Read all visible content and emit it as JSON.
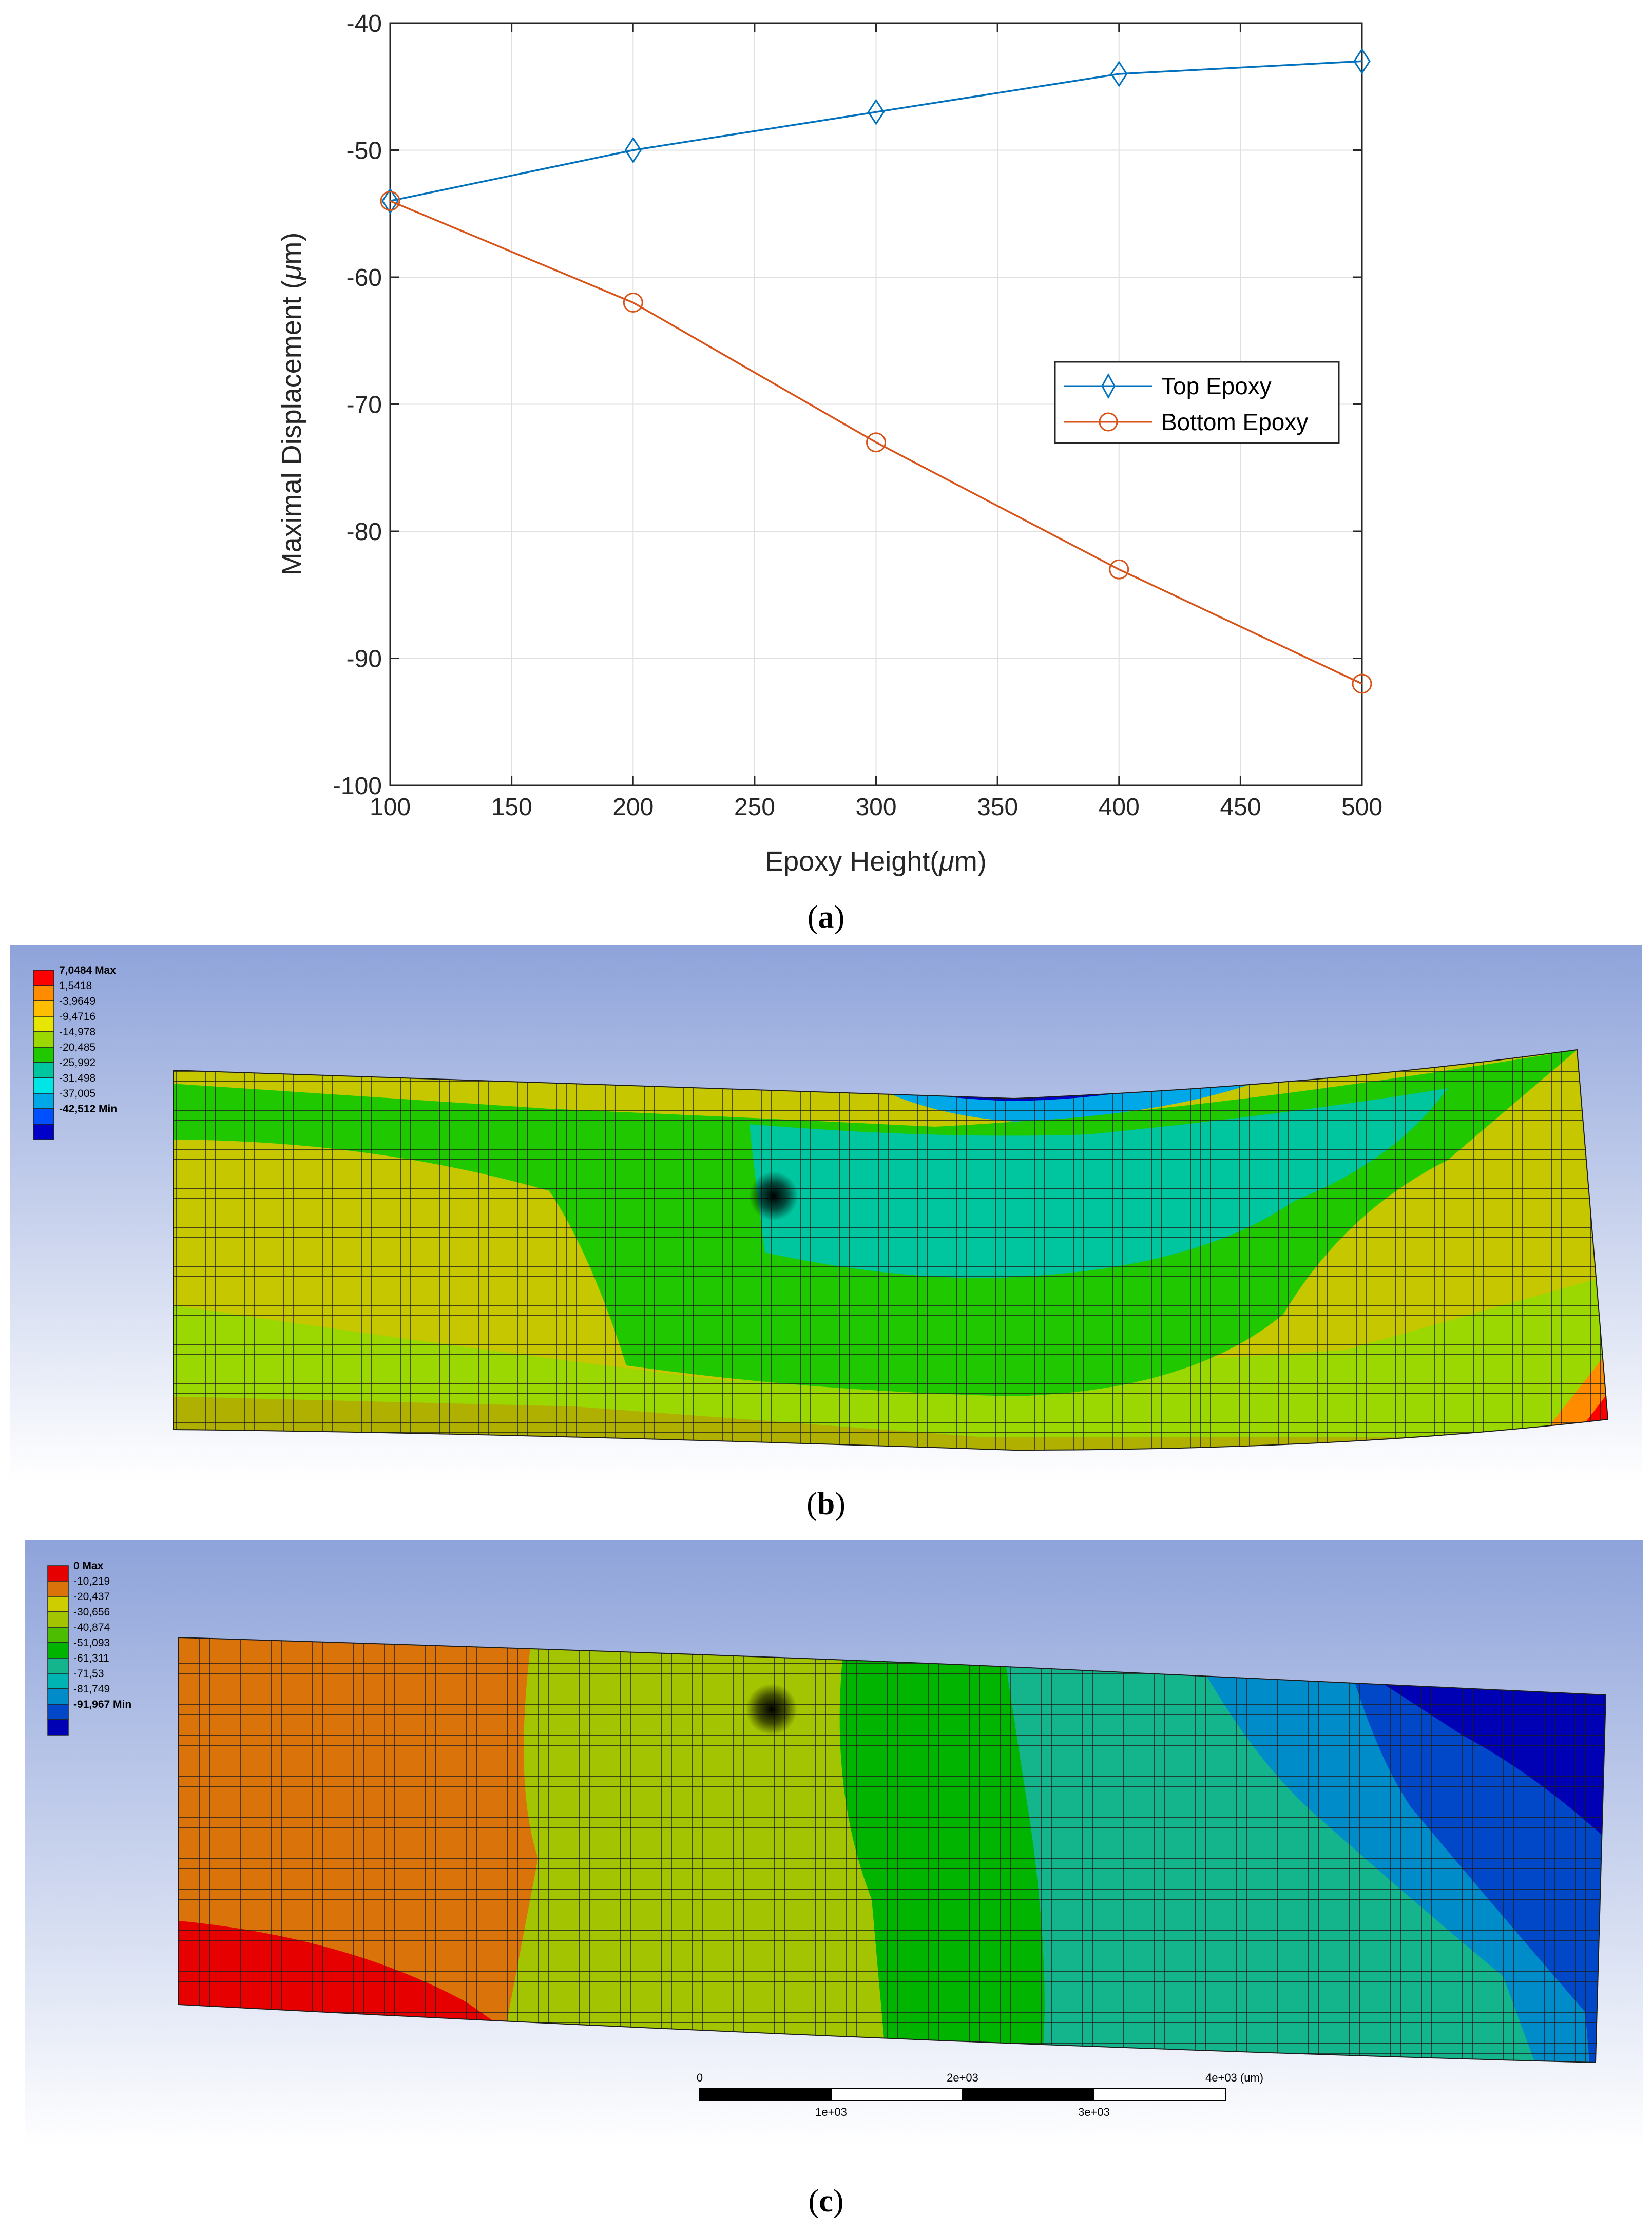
{
  "chart_data": {
    "type": "line",
    "xlabel_text": "Epoxy Height(",
    "ylabel_text": "Maximal Displacement (",
    "unit_mu": "μ",
    "unit_m": "m)",
    "x": [
      100,
      200,
      300,
      400,
      500
    ],
    "xlim": [
      100,
      500
    ],
    "ylim": [
      -100,
      -40
    ],
    "xticks": [
      100,
      150,
      200,
      250,
      300,
      350,
      400,
      450,
      500
    ],
    "yticks": [
      -40,
      -50,
      -60,
      -70,
      -80,
      -90,
      -100
    ],
    "grid": true,
    "legend_position": "center-right",
    "series": [
      {
        "name": "Top Epoxy",
        "marker": "diamond",
        "color": "#0072BD",
        "values": [
          -54,
          -50,
          -47,
          -44,
          -43
        ]
      },
      {
        "name": "Bottom Epoxy",
        "marker": "circle",
        "color": "#D95319",
        "values": [
          -54,
          -62,
          -73,
          -83,
          -92
        ]
      }
    ]
  },
  "captions": {
    "a": "a",
    "b": "b",
    "c": "c"
  },
  "panel_b": {
    "legend_colors": [
      "#ff0000",
      "#ff8c00",
      "#ffbf00",
      "#e6e600",
      "#9bd700",
      "#20c800",
      "#00c6a0",
      "#00e6e6",
      "#00a8e8",
      "#0050ff",
      "#0000c8"
    ],
    "legend_labels": [
      "7,0484 Max",
      "1,5418",
      "-3,9649",
      "-9,4716",
      "-14,978",
      "-20,485",
      "-25,992",
      "-31,498",
      "-37,005",
      "-42,512 Min"
    ]
  },
  "panel_c": {
    "legend_colors": [
      "#e60000",
      "#d9730a",
      "#cdcd00",
      "#a3c400",
      "#4cbd00",
      "#00b400",
      "#14b48c",
      "#00b4b4",
      "#008cc8",
      "#0048c8",
      "#0000b4"
    ],
    "legend_labels": [
      "0 Max",
      "-10,219",
      "-20,437",
      "-30,656",
      "-40,874",
      "-51,093",
      "-61,311",
      "-71,53",
      "-81,749",
      "-91,967 Min"
    ],
    "scale_top_labels": [
      "0",
      "2e+03",
      "4e+03 (um)"
    ],
    "scale_bottom_labels": [
      "1e+03",
      "3e+03"
    ]
  }
}
